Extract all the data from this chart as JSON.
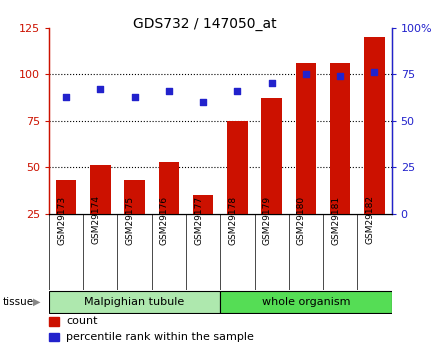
{
  "title": "GDS732 / 147050_at",
  "samples": [
    "GSM29173",
    "GSM29174",
    "GSM29175",
    "GSM29176",
    "GSM29177",
    "GSM29178",
    "GSM29179",
    "GSM29180",
    "GSM29181",
    "GSM29182"
  ],
  "counts": [
    43,
    51,
    43,
    53,
    35,
    75,
    87,
    106,
    106,
    120
  ],
  "percentiles": [
    63,
    67,
    63,
    66,
    60,
    66,
    70,
    75,
    74,
    76
  ],
  "tissue_groups": [
    {
      "label": "Malpighian tubule",
      "start": 0,
      "end": 5,
      "color": "#aee8ae"
    },
    {
      "label": "whole organism",
      "start": 5,
      "end": 10,
      "color": "#55dd55"
    }
  ],
  "left_ylim": [
    25,
    125
  ],
  "left_yticks": [
    25,
    50,
    75,
    100,
    125
  ],
  "right_ylim": [
    0,
    100
  ],
  "right_yticks": [
    0,
    25,
    50,
    75,
    100
  ],
  "right_yticklabels": [
    "0",
    "25",
    "50",
    "75",
    "100%"
  ],
  "bar_color": "#cc1100",
  "dot_color": "#2222cc",
  "grid_color": "#000000",
  "bg_color": "#ffffff",
  "tick_label_bg": "#cccccc",
  "left_axis_color": "#cc1100",
  "right_axis_color": "#2222cc",
  "bar_bottom": 25,
  "dotted_gridlines": [
    50,
    75,
    100
  ]
}
